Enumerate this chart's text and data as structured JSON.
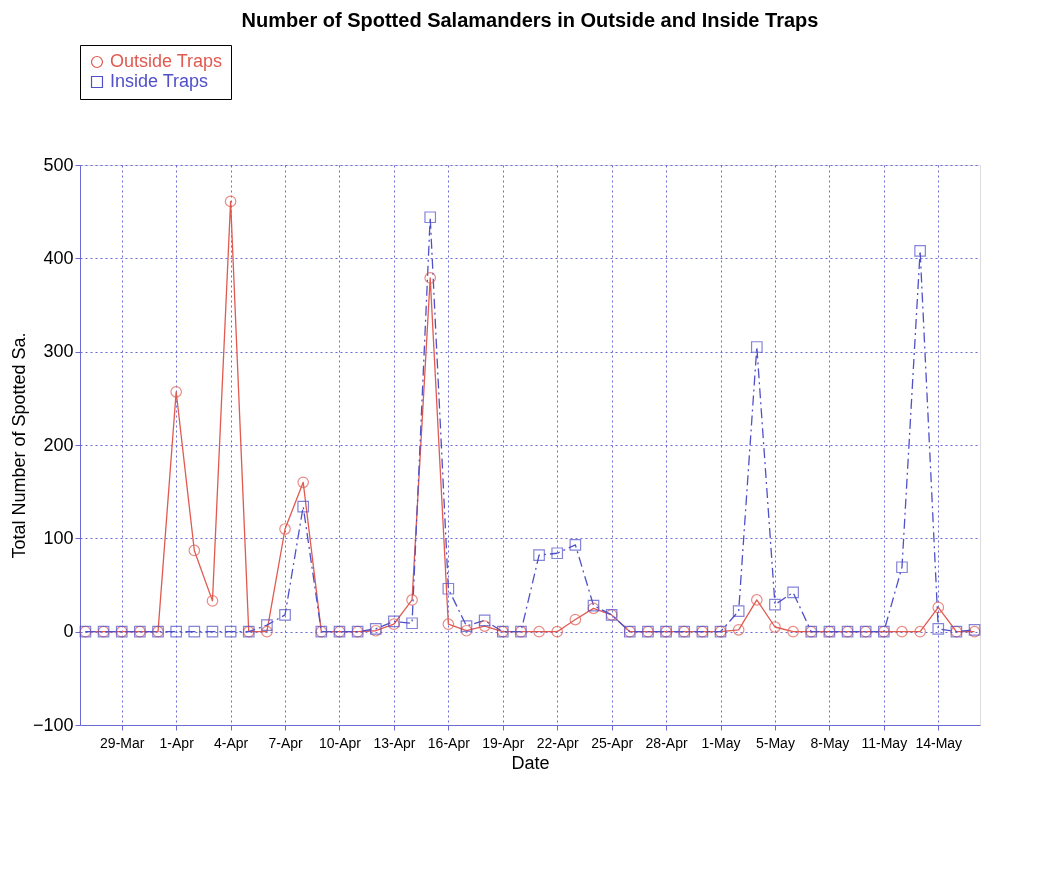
{
  "chart_data": {
    "type": "line",
    "title": "Number of Spotted Salamanders in Outside and Inside Traps",
    "xlabel": "Date",
    "ylabel": "Total Number of Spotted Sa.",
    "categories": [
      null,
      null,
      "29-Mar",
      null,
      null,
      "1-Apr",
      null,
      null,
      "4-Apr",
      null,
      null,
      "7-Apr",
      null,
      null,
      "10-Apr",
      null,
      null,
      "13-Apr",
      null,
      null,
      "16-Apr",
      null,
      null,
      "19-Apr",
      null,
      null,
      "22-Apr",
      null,
      null,
      "25-Apr",
      null,
      null,
      "28-Apr",
      null,
      null,
      "1-May",
      null,
      null,
      "5-May",
      null,
      null,
      "8-May",
      null,
      null,
      "11-May",
      null,
      null,
      "14-May",
      null,
      null
    ],
    "series": [
      {
        "name": "Outside Traps",
        "color": "#e05a50",
        "marker": "circle",
        "line_style": "solid",
        "values": [
          0,
          0,
          0,
          0,
          0,
          257,
          87,
          33,
          461,
          0,
          0,
          110,
          160,
          0,
          0,
          0,
          1,
          8,
          34,
          379,
          8,
          1,
          6,
          0,
          0,
          0,
          0,
          13,
          25,
          18,
          0,
          0,
          0,
          0,
          0,
          0,
          2,
          34,
          5,
          0,
          0,
          0,
          0,
          0,
          0,
          0,
          0,
          26,
          0,
          0
        ]
      },
      {
        "name": "Inside Traps",
        "color": "#5050c8",
        "marker": "square",
        "line_style": "dashed",
        "values": [
          0,
          0,
          0,
          0,
          0,
          0,
          0,
          0,
          0,
          0,
          7,
          18,
          134,
          0,
          0,
          0,
          3,
          11,
          9,
          444,
          46,
          6,
          12,
          0,
          0,
          82,
          84,
          93,
          28,
          18,
          0,
          0,
          0,
          0,
          0,
          0,
          22,
          305,
          29,
          42,
          0,
          0,
          0,
          0,
          0,
          69,
          408,
          3,
          0,
          2
        ]
      }
    ],
    "ylim": [
      -100,
      500
    ],
    "yticks": [
      -100,
      0,
      100,
      200,
      300,
      400,
      500
    ],
    "grid": true,
    "legend": "top left"
  }
}
